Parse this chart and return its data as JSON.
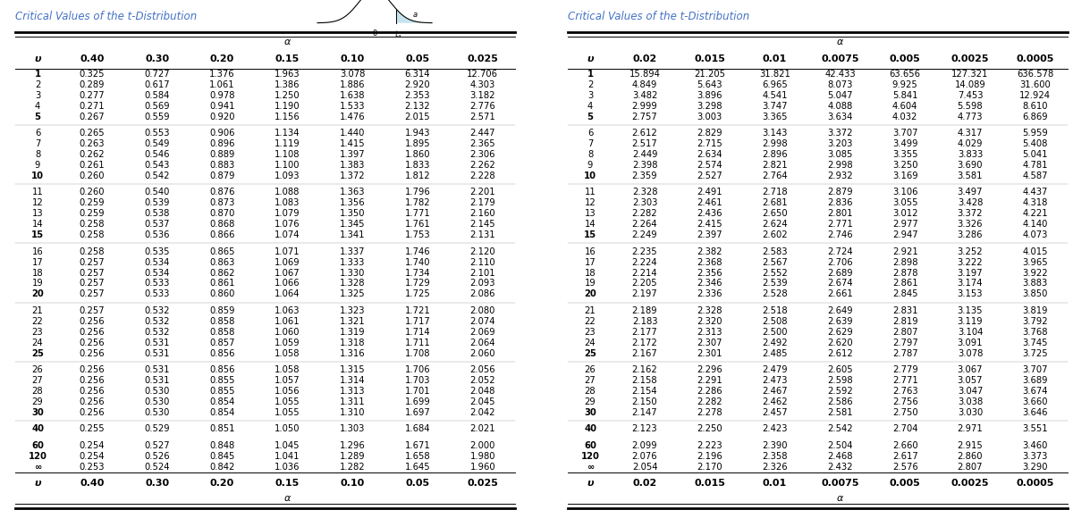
{
  "title": "Critical Values of the t-Distribution",
  "left_table": {
    "col_headers": [
      "υ",
      "0.40",
      "0.30",
      "0.20",
      "0.15",
      "0.10",
      "0.05",
      "0.025"
    ],
    "rows": [
      [
        "1",
        "0.325",
        "0.727",
        "1.376",
        "1.963",
        "3.078",
        "6.314",
        "12.706"
      ],
      [
        "2",
        "0.289",
        "0.617",
        "1.061",
        "1.386",
        "1.886",
        "2.920",
        "4.303"
      ],
      [
        "3",
        "0.277",
        "0.584",
        "0.978",
        "1.250",
        "1.638",
        "2.353",
        "3.182"
      ],
      [
        "4",
        "0.271",
        "0.569",
        "0.941",
        "1.190",
        "1.533",
        "2.132",
        "2.776"
      ],
      [
        "5",
        "0.267",
        "0.559",
        "0.920",
        "1.156",
        "1.476",
        "2.015",
        "2.571"
      ],
      [
        "6",
        "0.265",
        "0.553",
        "0.906",
        "1.134",
        "1.440",
        "1.943",
        "2.447"
      ],
      [
        "7",
        "0.263",
        "0.549",
        "0.896",
        "1.119",
        "1.415",
        "1.895",
        "2.365"
      ],
      [
        "8",
        "0.262",
        "0.546",
        "0.889",
        "1.108",
        "1.397",
        "1.860",
        "2.306"
      ],
      [
        "9",
        "0.261",
        "0.543",
        "0.883",
        "1.100",
        "1.383",
        "1.833",
        "2.262"
      ],
      [
        "10",
        "0.260",
        "0.542",
        "0.879",
        "1.093",
        "1.372",
        "1.812",
        "2.228"
      ],
      [
        "11",
        "0.260",
        "0.540",
        "0.876",
        "1.088",
        "1.363",
        "1.796",
        "2.201"
      ],
      [
        "12",
        "0.259",
        "0.539",
        "0.873",
        "1.083",
        "1.356",
        "1.782",
        "2.179"
      ],
      [
        "13",
        "0.259",
        "0.538",
        "0.870",
        "1.079",
        "1.350",
        "1.771",
        "2.160"
      ],
      [
        "14",
        "0.258",
        "0.537",
        "0.868",
        "1.076",
        "1.345",
        "1.761",
        "2.145"
      ],
      [
        "15",
        "0.258",
        "0.536",
        "0.866",
        "1.074",
        "1.341",
        "1.753",
        "2.131"
      ],
      [
        "16",
        "0.258",
        "0.535",
        "0.865",
        "1.071",
        "1.337",
        "1.746",
        "2.120"
      ],
      [
        "17",
        "0.257",
        "0.534",
        "0.863",
        "1.069",
        "1.333",
        "1.740",
        "2.110"
      ],
      [
        "18",
        "0.257",
        "0.534",
        "0.862",
        "1.067",
        "1.330",
        "1.734",
        "2.101"
      ],
      [
        "19",
        "0.257",
        "0.533",
        "0.861",
        "1.066",
        "1.328",
        "1.729",
        "2.093"
      ],
      [
        "20",
        "0.257",
        "0.533",
        "0.860",
        "1.064",
        "1.325",
        "1.725",
        "2.086"
      ],
      [
        "21",
        "0.257",
        "0.532",
        "0.859",
        "1.063",
        "1.323",
        "1.721",
        "2.080"
      ],
      [
        "22",
        "0.256",
        "0.532",
        "0.858",
        "1.061",
        "1.321",
        "1.717",
        "2.074"
      ],
      [
        "23",
        "0.256",
        "0.532",
        "0.858",
        "1.060",
        "1.319",
        "1.714",
        "2.069"
      ],
      [
        "24",
        "0.256",
        "0.531",
        "0.857",
        "1.059",
        "1.318",
        "1.711",
        "2.064"
      ],
      [
        "25",
        "0.256",
        "0.531",
        "0.856",
        "1.058",
        "1.316",
        "1.708",
        "2.060"
      ],
      [
        "26",
        "0.256",
        "0.531",
        "0.856",
        "1.058",
        "1.315",
        "1.706",
        "2.056"
      ],
      [
        "27",
        "0.256",
        "0.531",
        "0.855",
        "1.057",
        "1.314",
        "1.703",
        "2.052"
      ],
      [
        "28",
        "0.256",
        "0.530",
        "0.855",
        "1.056",
        "1.313",
        "1.701",
        "2.048"
      ],
      [
        "29",
        "0.256",
        "0.530",
        "0.854",
        "1.055",
        "1.311",
        "1.699",
        "2.045"
      ],
      [
        "30",
        "0.256",
        "0.530",
        "0.854",
        "1.055",
        "1.310",
        "1.697",
        "2.042"
      ],
      [
        "40",
        "0.255",
        "0.529",
        "0.851",
        "1.050",
        "1.303",
        "1.684",
        "2.021"
      ],
      [
        "60",
        "0.254",
        "0.527",
        "0.848",
        "1.045",
        "1.296",
        "1.671",
        "2.000"
      ],
      [
        "120",
        "0.254",
        "0.526",
        "0.845",
        "1.041",
        "1.289",
        "1.658",
        "1.980"
      ],
      [
        "∞",
        "0.253",
        "0.524",
        "0.842",
        "1.036",
        "1.282",
        "1.645",
        "1.960"
      ]
    ]
  },
  "right_table": {
    "col_headers": [
      "υ",
      "0.02",
      "0.015",
      "0.01",
      "0.0075",
      "0.005",
      "0.0025",
      "0.0005"
    ],
    "rows": [
      [
        "1",
        "15.894",
        "21.205",
        "31.821",
        "42.433",
        "63.656",
        "127.321",
        "636.578"
      ],
      [
        "2",
        "4.849",
        "5.643",
        "6.965",
        "8.073",
        "9.925",
        "14.089",
        "31.600"
      ],
      [
        "3",
        "3.482",
        "3.896",
        "4.541",
        "5.047",
        "5.841",
        "7.453",
        "12.924"
      ],
      [
        "4",
        "2.999",
        "3.298",
        "3.747",
        "4.088",
        "4.604",
        "5.598",
        "8.610"
      ],
      [
        "5",
        "2.757",
        "3.003",
        "3.365",
        "3.634",
        "4.032",
        "4.773",
        "6.869"
      ],
      [
        "6",
        "2.612",
        "2.829",
        "3.143",
        "3.372",
        "3.707",
        "4.317",
        "5.959"
      ],
      [
        "7",
        "2.517",
        "2.715",
        "2.998",
        "3.203",
        "3.499",
        "4.029",
        "5.408"
      ],
      [
        "8",
        "2.449",
        "2.634",
        "2.896",
        "3.085",
        "3.355",
        "3.833",
        "5.041"
      ],
      [
        "9",
        "2.398",
        "2.574",
        "2.821",
        "2.998",
        "3.250",
        "3.690",
        "4.781"
      ],
      [
        "10",
        "2.359",
        "2.527",
        "2.764",
        "2.932",
        "3.169",
        "3.581",
        "4.587"
      ],
      [
        "11",
        "2.328",
        "2.491",
        "2.718",
        "2.879",
        "3.106",
        "3.497",
        "4.437"
      ],
      [
        "12",
        "2.303",
        "2.461",
        "2.681",
        "2.836",
        "3.055",
        "3.428",
        "4.318"
      ],
      [
        "13",
        "2.282",
        "2.436",
        "2.650",
        "2.801",
        "3.012",
        "3.372",
        "4.221"
      ],
      [
        "14",
        "2.264",
        "2.415",
        "2.624",
        "2.771",
        "2.977",
        "3.326",
        "4.140"
      ],
      [
        "15",
        "2.249",
        "2.397",
        "2.602",
        "2.746",
        "2.947",
        "3.286",
        "4.073"
      ],
      [
        "16",
        "2.235",
        "2.382",
        "2.583",
        "2.724",
        "2.921",
        "3.252",
        "4.015"
      ],
      [
        "17",
        "2.224",
        "2.368",
        "2.567",
        "2.706",
        "2.898",
        "3.222",
        "3.965"
      ],
      [
        "18",
        "2.214",
        "2.356",
        "2.552",
        "2.689",
        "2.878",
        "3.197",
        "3.922"
      ],
      [
        "19",
        "2.205",
        "2.346",
        "2.539",
        "2.674",
        "2.861",
        "3.174",
        "3.883"
      ],
      [
        "20",
        "2.197",
        "2.336",
        "2.528",
        "2.661",
        "2.845",
        "3.153",
        "3.850"
      ],
      [
        "21",
        "2.189",
        "2.328",
        "2.518",
        "2.649",
        "2.831",
        "3.135",
        "3.819"
      ],
      [
        "22",
        "2.183",
        "2.320",
        "2.508",
        "2.639",
        "2.819",
        "3.119",
        "3.792"
      ],
      [
        "23",
        "2.177",
        "2.313",
        "2.500",
        "2.629",
        "2.807",
        "3.104",
        "3.768"
      ],
      [
        "24",
        "2.172",
        "2.307",
        "2.492",
        "2.620",
        "2.797",
        "3.091",
        "3.745"
      ],
      [
        "25",
        "2.167",
        "2.301",
        "2.485",
        "2.612",
        "2.787",
        "3.078",
        "3.725"
      ],
      [
        "26",
        "2.162",
        "2.296",
        "2.479",
        "2.605",
        "2.779",
        "3.067",
        "3.707"
      ],
      [
        "27",
        "2.158",
        "2.291",
        "2.473",
        "2.598",
        "2.771",
        "3.057",
        "3.689"
      ],
      [
        "28",
        "2.154",
        "2.286",
        "2.467",
        "2.592",
        "2.763",
        "3.047",
        "3.674"
      ],
      [
        "29",
        "2.150",
        "2.282",
        "2.462",
        "2.586",
        "2.756",
        "3.038",
        "3.660"
      ],
      [
        "30",
        "2.147",
        "2.278",
        "2.457",
        "2.581",
        "2.750",
        "3.030",
        "3.646"
      ],
      [
        "40",
        "2.123",
        "2.250",
        "2.423",
        "2.542",
        "2.704",
        "2.971",
        "3.551"
      ],
      [
        "60",
        "2.099",
        "2.223",
        "2.390",
        "2.504",
        "2.660",
        "2.915",
        "3.460"
      ],
      [
        "120",
        "2.076",
        "2.196",
        "2.358",
        "2.468",
        "2.617",
        "2.860",
        "3.373"
      ],
      [
        "∞",
        "2.054",
        "2.170",
        "2.326",
        "2.432",
        "2.576",
        "2.807",
        "3.290"
      ]
    ]
  },
  "title_color": "#4472c4",
  "text_color": "#000000",
  "font_size": 7.2,
  "header_font_size": 8.0
}
